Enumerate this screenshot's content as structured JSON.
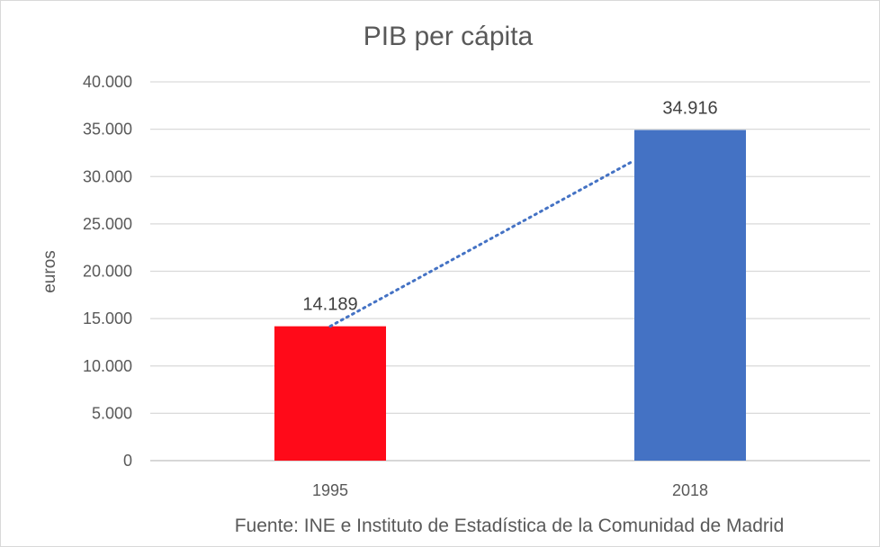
{
  "chart_data": {
    "type": "bar",
    "title": "PIB per cápita",
    "ylabel": "euros",
    "xlabel": "",
    "categories": [
      "1995",
      "2018"
    ],
    "values": [
      14189,
      34916
    ],
    "value_labels": [
      "14.189",
      "34.916"
    ],
    "bar_colors": [
      "#ff0a19",
      "#4472c4"
    ],
    "ylim": [
      0,
      40000
    ],
    "yticks": [
      0,
      5000,
      10000,
      15000,
      20000,
      25000,
      30000,
      35000,
      40000
    ],
    "ytick_labels": [
      "0",
      "5.000",
      "10.000",
      "15.000",
      "20.000",
      "25.000",
      "30.000",
      "35.000",
      "40.000"
    ],
    "grid": true,
    "trendline": {
      "type": "linear",
      "style": "dotted",
      "color": "#4472c4"
    },
    "source_note": "Fuente: INE e Instituto de Estadística de la Comunidad de Madrid"
  }
}
